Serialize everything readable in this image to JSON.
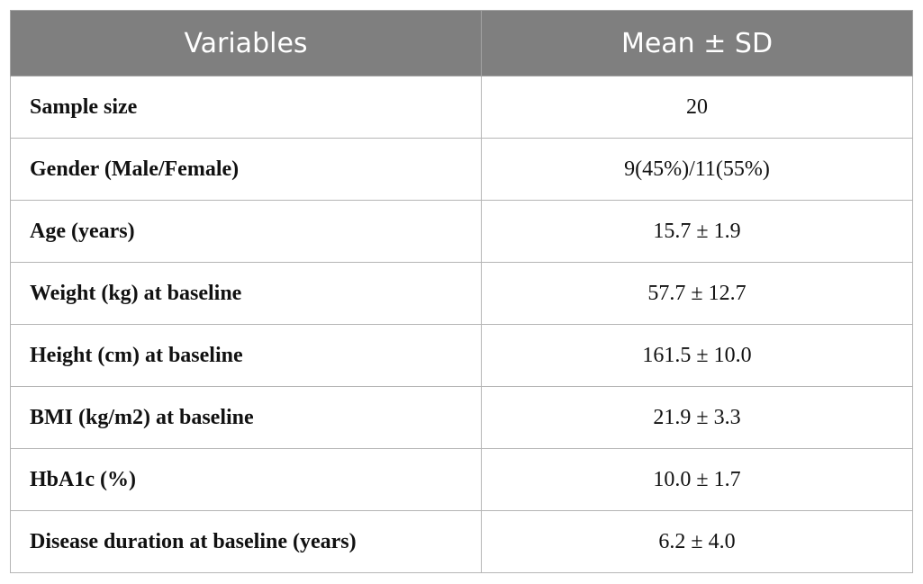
{
  "table": {
    "headers": [
      "Variables",
      "Mean ± SD"
    ],
    "rows": [
      {
        "variable": "Sample size",
        "value": "20"
      },
      {
        "variable": "Gender (Male/Female)",
        "value": "9(45%)/11(55%)"
      },
      {
        "variable": "Age (years)",
        "value": "15.7 ± 1.9"
      },
      {
        "variable": "Weight (kg) at baseline",
        "value": "57.7 ± 12.7"
      },
      {
        "variable": "Height (cm) at baseline",
        "value": "161.5 ± 10.0"
      },
      {
        "variable": "BMI (kg/m2) at baseline",
        "value": "21.9 ± 3.3"
      },
      {
        "variable": "HbA1c (%)",
        "value": "10.0 ± 1.7"
      },
      {
        "variable": "Disease duration at baseline (years)",
        "value": "6.2 ± 4.0"
      }
    ]
  },
  "colors": {
    "header_background": "#7f7f7f",
    "header_text": "#ffffff",
    "grid_line": "#b5b5b5"
  }
}
